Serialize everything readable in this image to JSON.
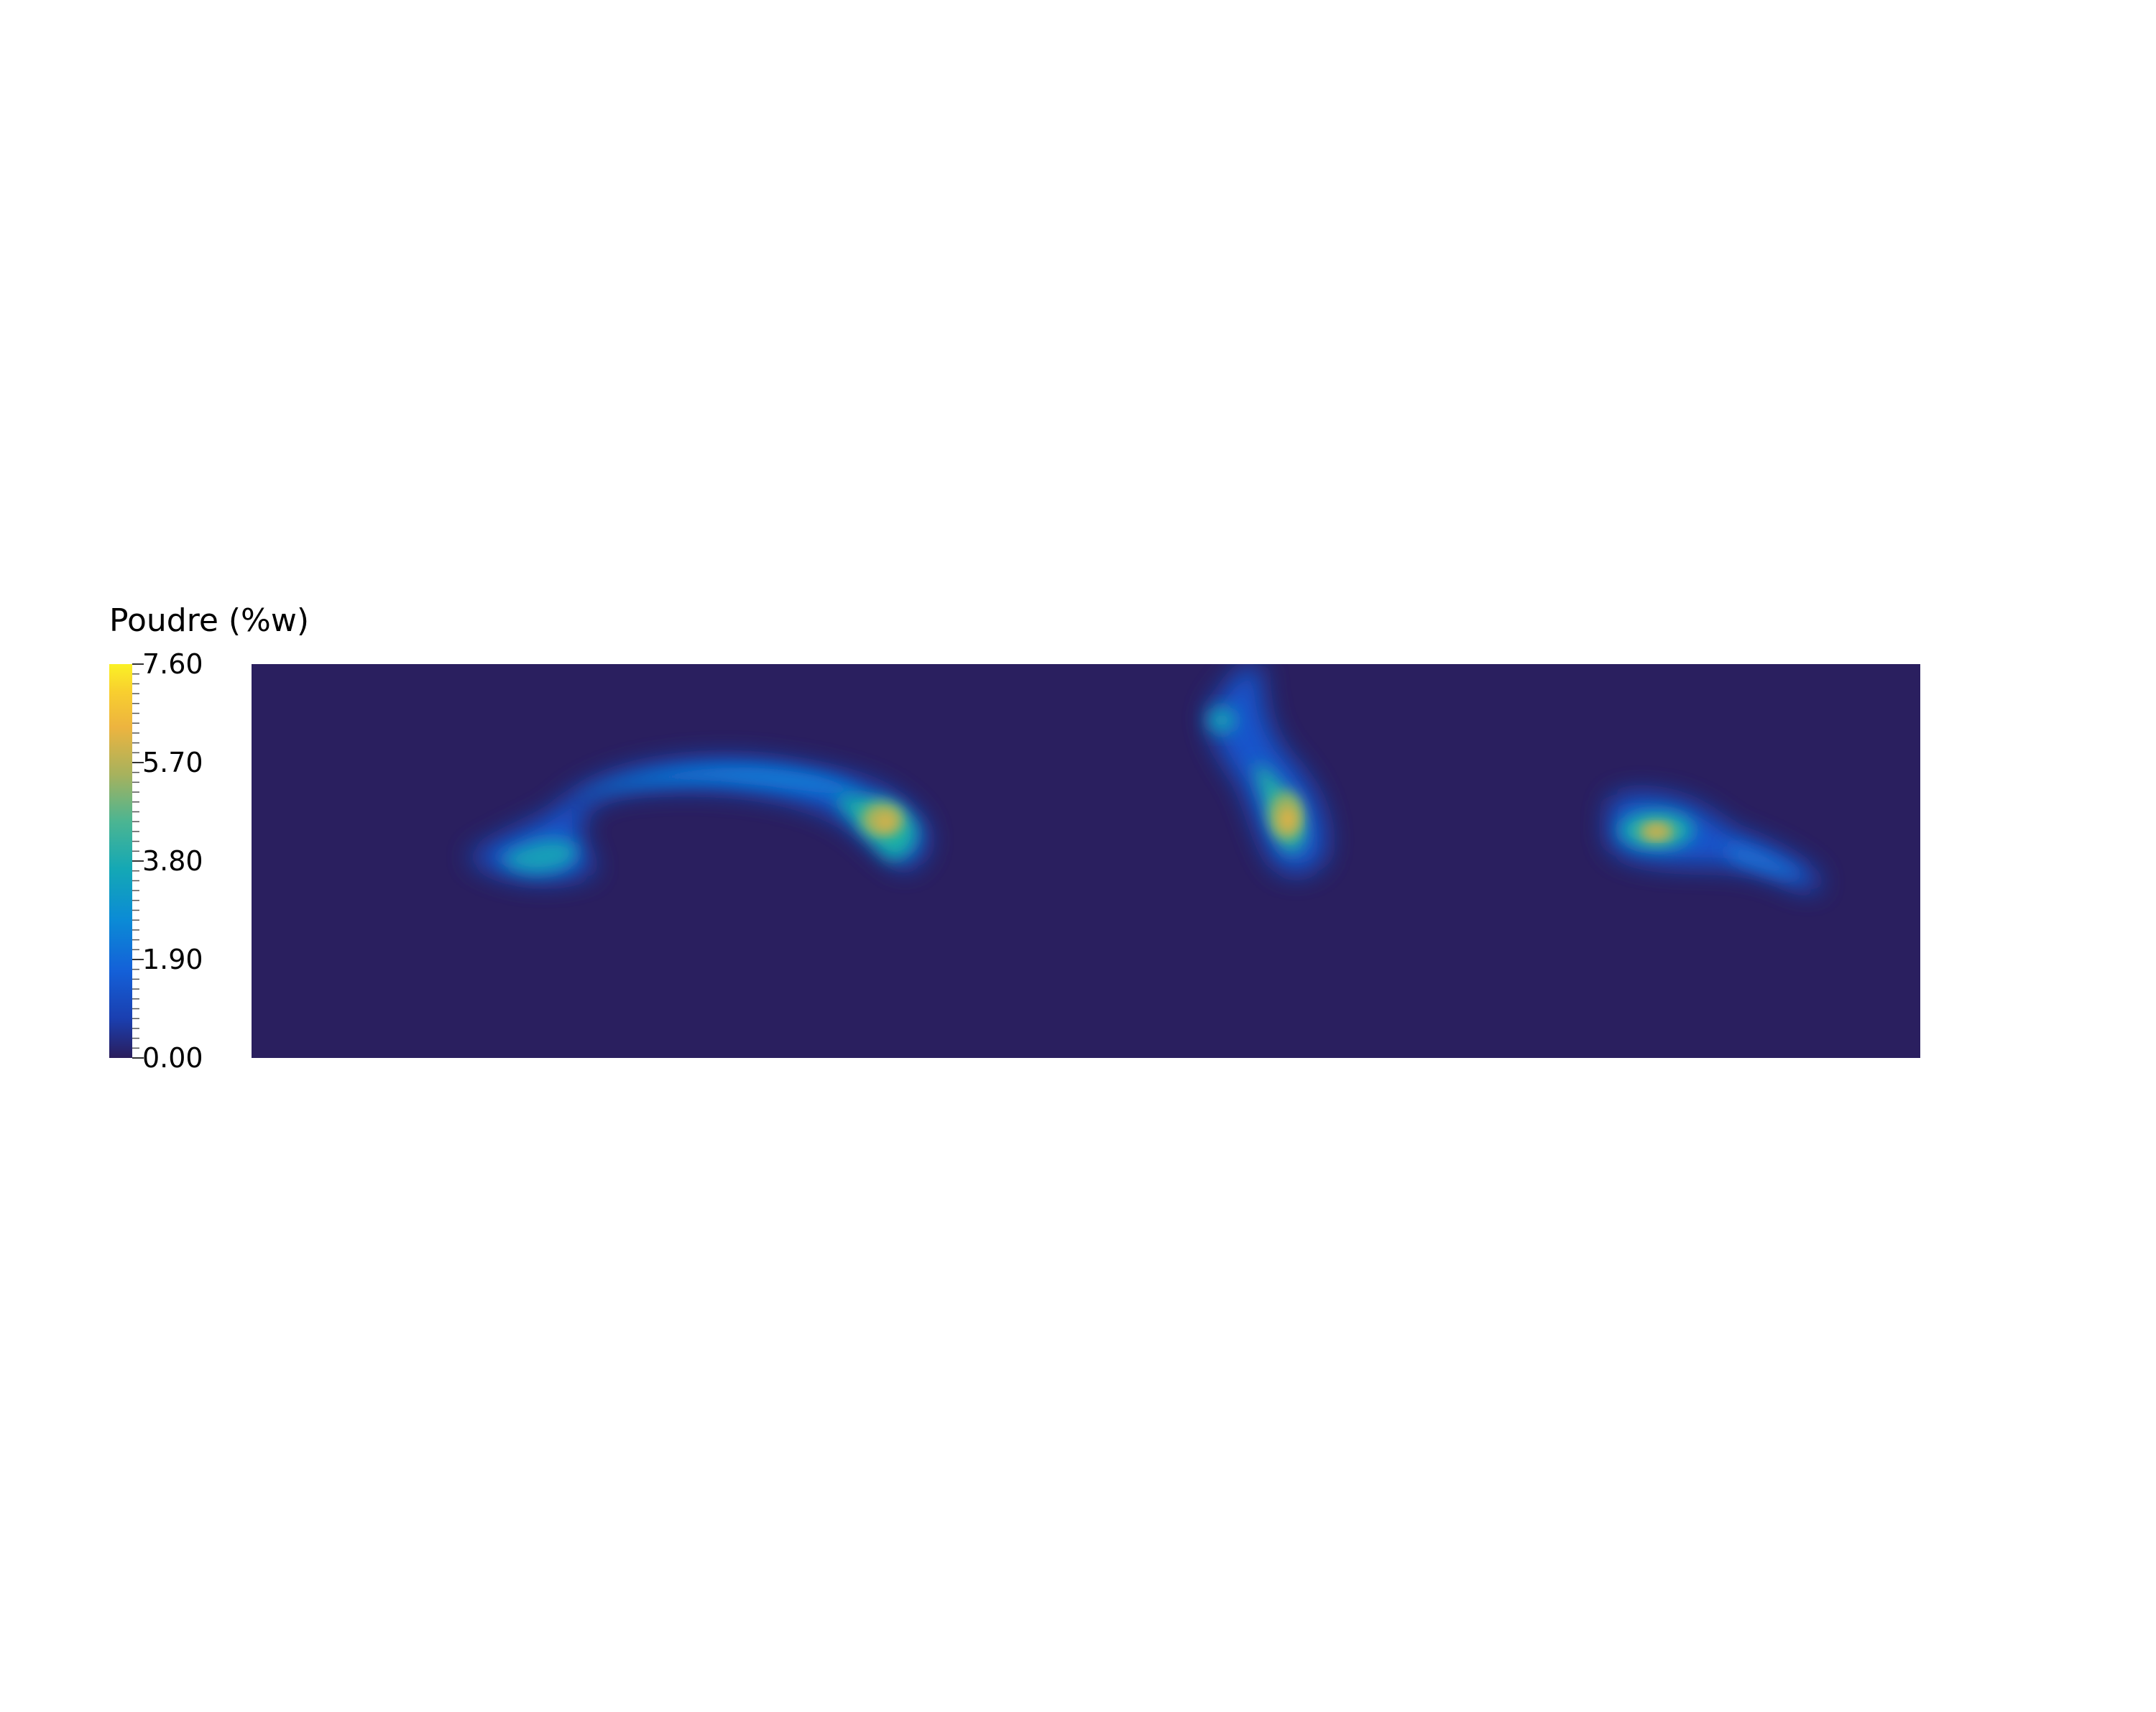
{
  "chart_data": {
    "type": "heatmap",
    "title": "",
    "colorbar": {
      "title": "Poudre (%w)",
      "range": [
        0.0,
        7.6
      ],
      "tick_labels": [
        "7.60",
        "5.70",
        "3.80",
        "1.90",
        "0.00"
      ],
      "tick_values": [
        7.6,
        5.7,
        3.8,
        1.9,
        0.0
      ],
      "colormap": [
        "#2a1d5c",
        "#1457d1",
        "#0b8bd6",
        "#14a8b5",
        "#3bb59a",
        "#7fb573",
        "#c8b152",
        "#f0b83c",
        "#f9d52b",
        "#fbf125"
      ],
      "placement": "left"
    },
    "field": {
      "background_value": 0.0,
      "background_color": "#2a1f5f",
      "x_range": [
        0,
        1
      ],
      "y_range": [
        0,
        1
      ],
      "features": [
        {
          "name": "left arc plume tail",
          "peak": 3.8
        },
        {
          "name": "left arc plume head",
          "peak": 5.7
        },
        {
          "name": "central plume",
          "peak": 5.9
        },
        {
          "name": "right plume",
          "peak": 5.2
        }
      ]
    }
  }
}
